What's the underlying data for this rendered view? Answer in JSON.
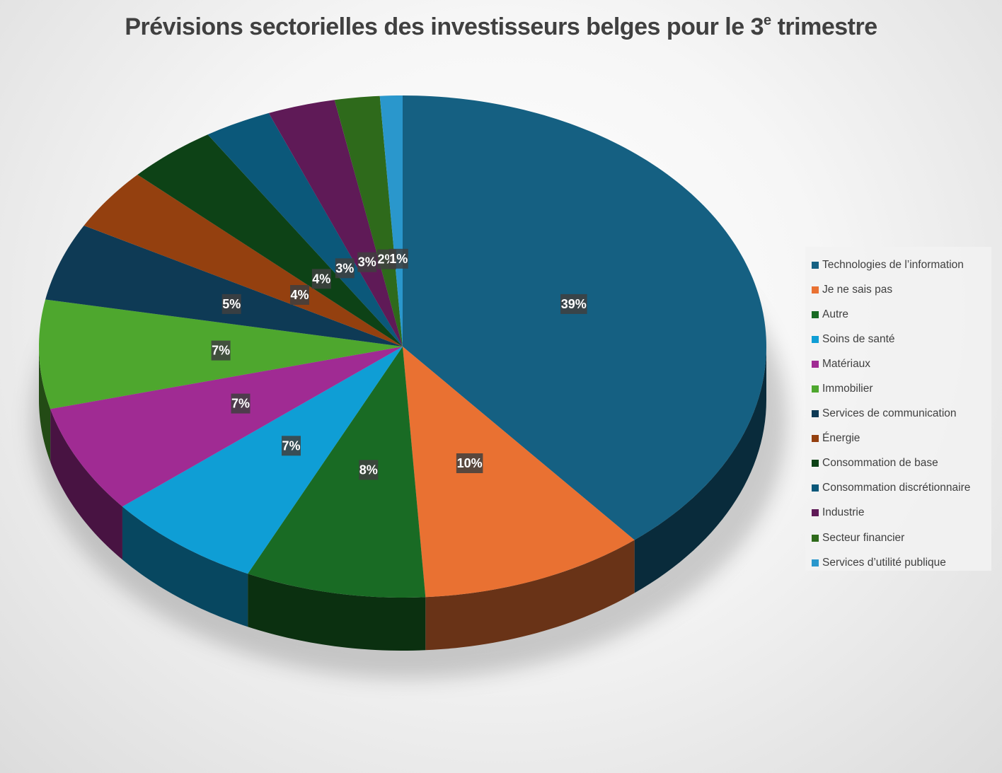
{
  "chart_data": {
    "type": "pie",
    "title": {
      "main": "Prévisions sectorielles des investisseurs belges pour le 3",
      "superscript": "e",
      "rest": " trimestre"
    },
    "legend_position": "right",
    "slices": [
      {
        "name": "Technologies de l’information",
        "value": 39,
        "label": "39%",
        "color": "#156082"
      },
      {
        "name": "Je ne sais pas",
        "value": 10,
        "label": "10%",
        "color": "#E97132"
      },
      {
        "name": "Autre",
        "value": 8,
        "label": "8%",
        "color": "#196B24"
      },
      {
        "name": "Soins de santé",
        "value": 7,
        "label": "7%",
        "color": "#0F9ED5"
      },
      {
        "name": "Matériaux",
        "value": 7,
        "label": "7%",
        "color": "#A02B93"
      },
      {
        "name": "Immobilier",
        "value": 7,
        "label": "7%",
        "color": "#4EA72E"
      },
      {
        "name": "Services de communication",
        "value": 5,
        "label": "5%",
        "color": "#0E3A55"
      },
      {
        "name": "Énergie",
        "value": 4,
        "label": "4%",
        "color": "#94400F"
      },
      {
        "name": "Consommation de base",
        "value": 4,
        "label": "4%",
        "color": "#0D4216"
      },
      {
        "name": "Consommation discrétionnaire",
        "value": 3,
        "label": "3%",
        "color": "#0B587A"
      },
      {
        "name": "Industrie",
        "value": 3,
        "label": "3%",
        "color": "#5F1A57"
      },
      {
        "name": "Secteur financier",
        "value": 2,
        "label": "2%",
        "color": "#2E6A1B"
      },
      {
        "name": "Services d’utilité publique",
        "value": 1,
        "label": "1%",
        "color": "#2A97CC"
      }
    ]
  }
}
